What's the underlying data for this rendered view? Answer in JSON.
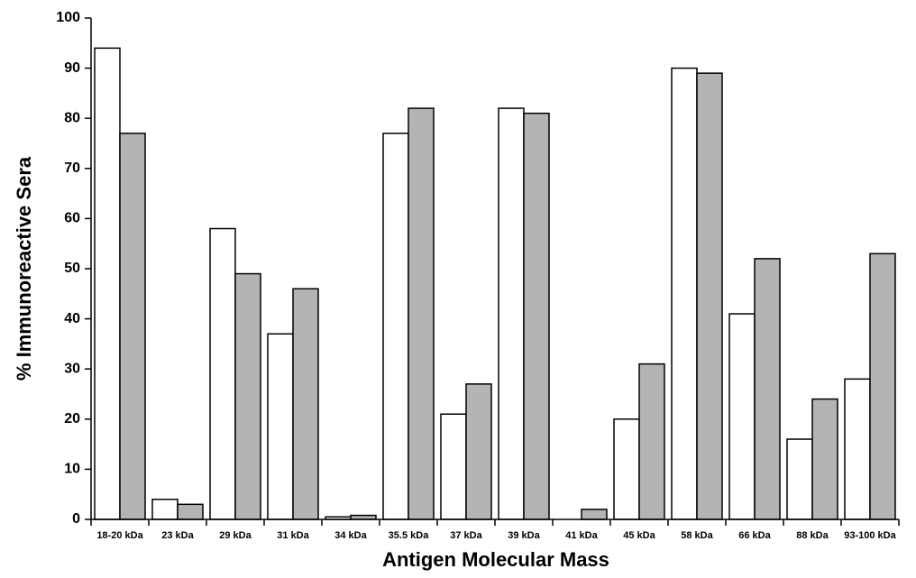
{
  "chart_data": {
    "type": "bar",
    "x_label": "Antigen Molecular Mass",
    "y_label": "% Immunoreactive Sera",
    "categories": [
      "18-20 kDa",
      "23 kDa",
      "29 kDa",
      "31 kDa",
      "34 kDa",
      "35.5 kDa",
      "37 kDa",
      "39 kDa",
      "41 kDa",
      "45 kDa",
      "58 kDa",
      "66 kDa",
      "88 kDa",
      "93-100 kDa"
    ],
    "series": [
      {
        "color": "#ffffff",
        "values": [
          94,
          4,
          58,
          37,
          0.5,
          77,
          21,
          82,
          0,
          20,
          90,
          41,
          16,
          28
        ]
      },
      {
        "color": "#b4b4b4",
        "values": [
          77,
          3,
          49,
          46,
          0.8,
          82,
          27,
          81,
          2,
          31,
          89,
          52,
          24,
          53
        ]
      }
    ],
    "ylim": [
      0,
      100
    ],
    "yticks": [
      0,
      10,
      20,
      30,
      40,
      50,
      60,
      70,
      80,
      90,
      100
    ],
    "grid": false
  }
}
